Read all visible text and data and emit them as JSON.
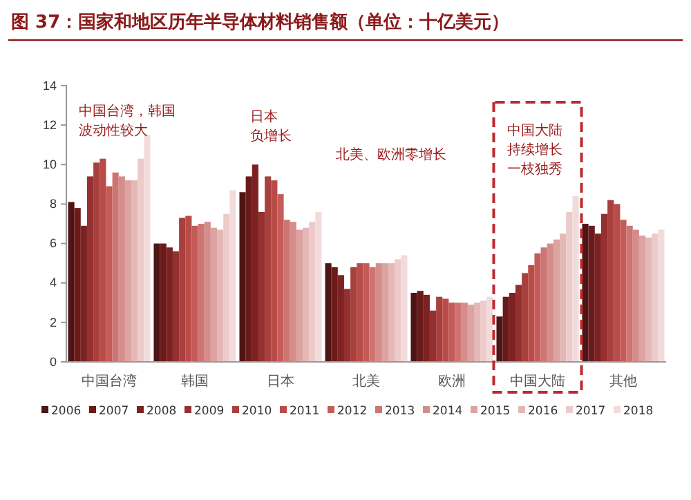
{
  "chart_data": {
    "type": "bar",
    "title": "图 37：国家和地区历年半导体材料销售额（单位：十亿美元）",
    "categories": [
      "中国台湾",
      "韩国",
      "日本",
      "北美",
      "欧洲",
      "中国大陆",
      "其他"
    ],
    "series": [
      {
        "name": "2006",
        "color": "#4d1515",
        "values": [
          8.1,
          6.0,
          8.6,
          5.0,
          3.5,
          2.3,
          7.0
        ]
      },
      {
        "name": "2007",
        "color": "#6b1a1a",
        "values": [
          7.8,
          6.0,
          9.4,
          4.8,
          3.6,
          3.3,
          6.9
        ]
      },
      {
        "name": "2008",
        "color": "#7d2222",
        "values": [
          6.9,
          5.8,
          10.0,
          4.4,
          3.4,
          3.5,
          6.5
        ]
      },
      {
        "name": "2009",
        "color": "#94302f",
        "values": [
          9.4,
          5.6,
          7.6,
          3.7,
          2.6,
          3.9,
          7.5
        ]
      },
      {
        "name": "2010",
        "color": "#a8403d",
        "values": [
          10.1,
          7.3,
          9.4,
          4.8,
          3.3,
          4.5,
          8.2
        ]
      },
      {
        "name": "2011",
        "color": "#b94c49",
        "values": [
          10.3,
          7.4,
          9.2,
          5.0,
          3.2,
          4.9,
          8.0
        ]
      },
      {
        "name": "2012",
        "color": "#c55b58",
        "values": [
          8.9,
          6.9,
          8.5,
          5.0,
          3.0,
          5.5,
          7.2
        ]
      },
      {
        "name": "2013",
        "color": "#cd7572",
        "values": [
          9.6,
          7.0,
          7.2,
          4.8,
          3.0,
          5.8,
          6.9
        ]
      },
      {
        "name": "2014",
        "color": "#d48d8a",
        "values": [
          9.4,
          7.1,
          7.1,
          5.0,
          3.0,
          6.0,
          6.7
        ]
      },
      {
        "name": "2015",
        "color": "#dca3a1",
        "values": [
          9.2,
          6.8,
          6.7,
          5.0,
          2.9,
          6.2,
          6.4
        ]
      },
      {
        "name": "2016",
        "color": "#e4b8b6",
        "values": [
          9.2,
          6.7,
          6.8,
          5.0,
          3.0,
          6.5,
          6.3
        ]
      },
      {
        "name": "2017",
        "color": "#eccbca",
        "values": [
          10.3,
          7.5,
          7.1,
          5.2,
          3.1,
          7.6,
          6.5
        ]
      },
      {
        "name": "2018",
        "color": "#f2dcdb",
        "values": [
          11.5,
          8.7,
          7.6,
          5.4,
          3.3,
          8.4,
          6.7
        ]
      }
    ],
    "ylim": [
      0,
      14
    ],
    "yticks": [
      0,
      2,
      4,
      6,
      8,
      10,
      12,
      14
    ],
    "grid": false,
    "legend": "bottom",
    "annotations": [
      "中国台湾，韩国波动性较大",
      "日本负增长",
      "北美、欧洲零增长",
      "中国大陆持续增长一枝独秀"
    ]
  }
}
